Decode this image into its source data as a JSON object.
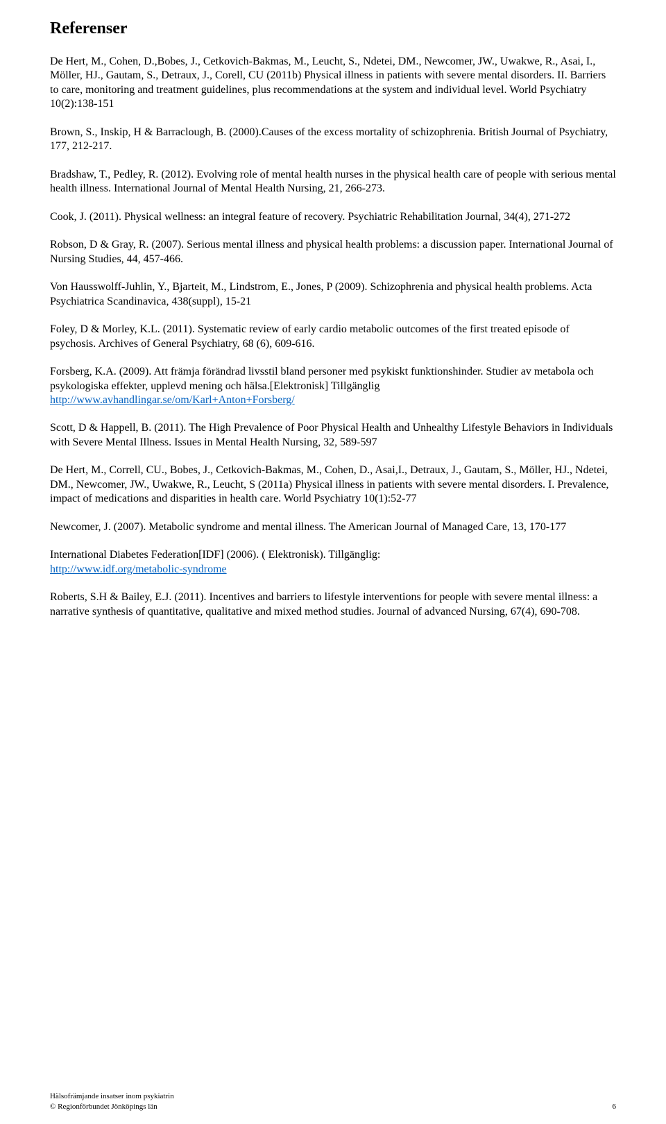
{
  "title": "Referenser",
  "references": [
    "De Hert, M., Cohen, D.,Bobes, J., Cetkovich-Bakmas, M., Leucht, S., Ndetei, DM., Newcomer, JW., Uwakwe, R., Asai, I., Möller, HJ., Gautam, S., Detraux, J., Corell, CU (2011b) Physical illness in patients with severe mental disorders. II. Barriers to care, monitoring and treatment guidelines, plus recommendations at the system and individual level. World Psychiatry 10(2):138-151",
    "Brown, S., Inskip, H & Barraclough, B. (2000).Causes of the excess mortality of schizophrenia. British Journal of Psychiatry, 177, 212-217.",
    "Bradshaw, T., Pedley, R. (2012). Evolving role of mental health nurses in the physical health care of people with serious mental health illness. International Journal of Mental Health Nursing, 21, 266-273.",
    "Cook, J. (2011). Physical wellness: an integral feature of recovery. Psychiatric Rehabilitation Journal, 34(4), 271-272",
    "Robson, D & Gray, R. (2007). Serious mental illness and physical health problems: a discussion paper. International Journal of Nursing Studies, 44, 457-466.",
    "Von Hausswolff-Juhlin, Y., Bjarteit, M., Lindstrom, E., Jones, P (2009). Schizophrenia and physical health problems. Acta Psychiatrica Scandinavica, 438(suppl), 15-21",
    "Foley, D & Morley, K.L. (2011). Systematic review of early cardio metabolic outcomes of the first treated episode of psychosis. Archives of General Psychiatry, 68 (6), 609-616.",
    "",
    "Scott, D & Happell, B. (2011). The High Prevalence of Poor Physical Health and Unhealthy Lifestyle Behaviors in Individuals with Severe Mental Illness. Issues in Mental Health Nursing, 32, 589-597",
    "De Hert, M., Correll, CU., Bobes, J., Cetkovich-Bakmas, M., Cohen, D., Asai,I., Detraux, J., Gautam, S., Möller, HJ., Ndetei, DM., Newcomer, JW., Uwakwe, R., Leucht, S (2011a) Physical illness in patients with severe mental disorders. I. Prevalence, impact of medications and disparities in health care. World Psychiatry 10(1):52-77",
    "Newcomer, J. (2007). Metabolic syndrome and mental illness. The American Journal of Managed Care, 13, 170-177",
    "",
    "Roberts, S.H & Bailey, E.J. (2011). Incentives and barriers to lifestyle interventions for people with severe mental illness: a narrative synthesis of quantitative, qualitative and mixed method studies. Journal of advanced Nursing, 67(4), 690-708."
  ],
  "ref_with_link_1": {
    "prefix": "Forsberg, K.A. (2009). Att främja förändrad livsstil bland personer med psykiskt funktionshinder. Studier av metabola och psykologiska effekter, upplevd mening och hälsa.[Elektronisk] Tillgänglig ",
    "link_text": "http://www.avhandlingar.se/om/Karl+Anton+Forsberg/"
  },
  "ref_with_link_2": {
    "prefix": "International Diabetes Federation[IDF] (2006). ( Elektronisk). Tillgänglig: ",
    "link_text": "http://www.idf.org/metabolic-syndrome"
  },
  "footer": {
    "line1": "Hälsofrämjande insatser inom psykiatrin",
    "line2_left": "© Regionförbundet Jönköpings län",
    "page_number": "6"
  },
  "colors": {
    "link": "#0563c1",
    "text": "#000000",
    "background": "#ffffff"
  },
  "typography": {
    "title_fontsize": 24,
    "body_fontsize": 16,
    "footer_fontsize": 11,
    "font_family": "Times New Roman"
  }
}
